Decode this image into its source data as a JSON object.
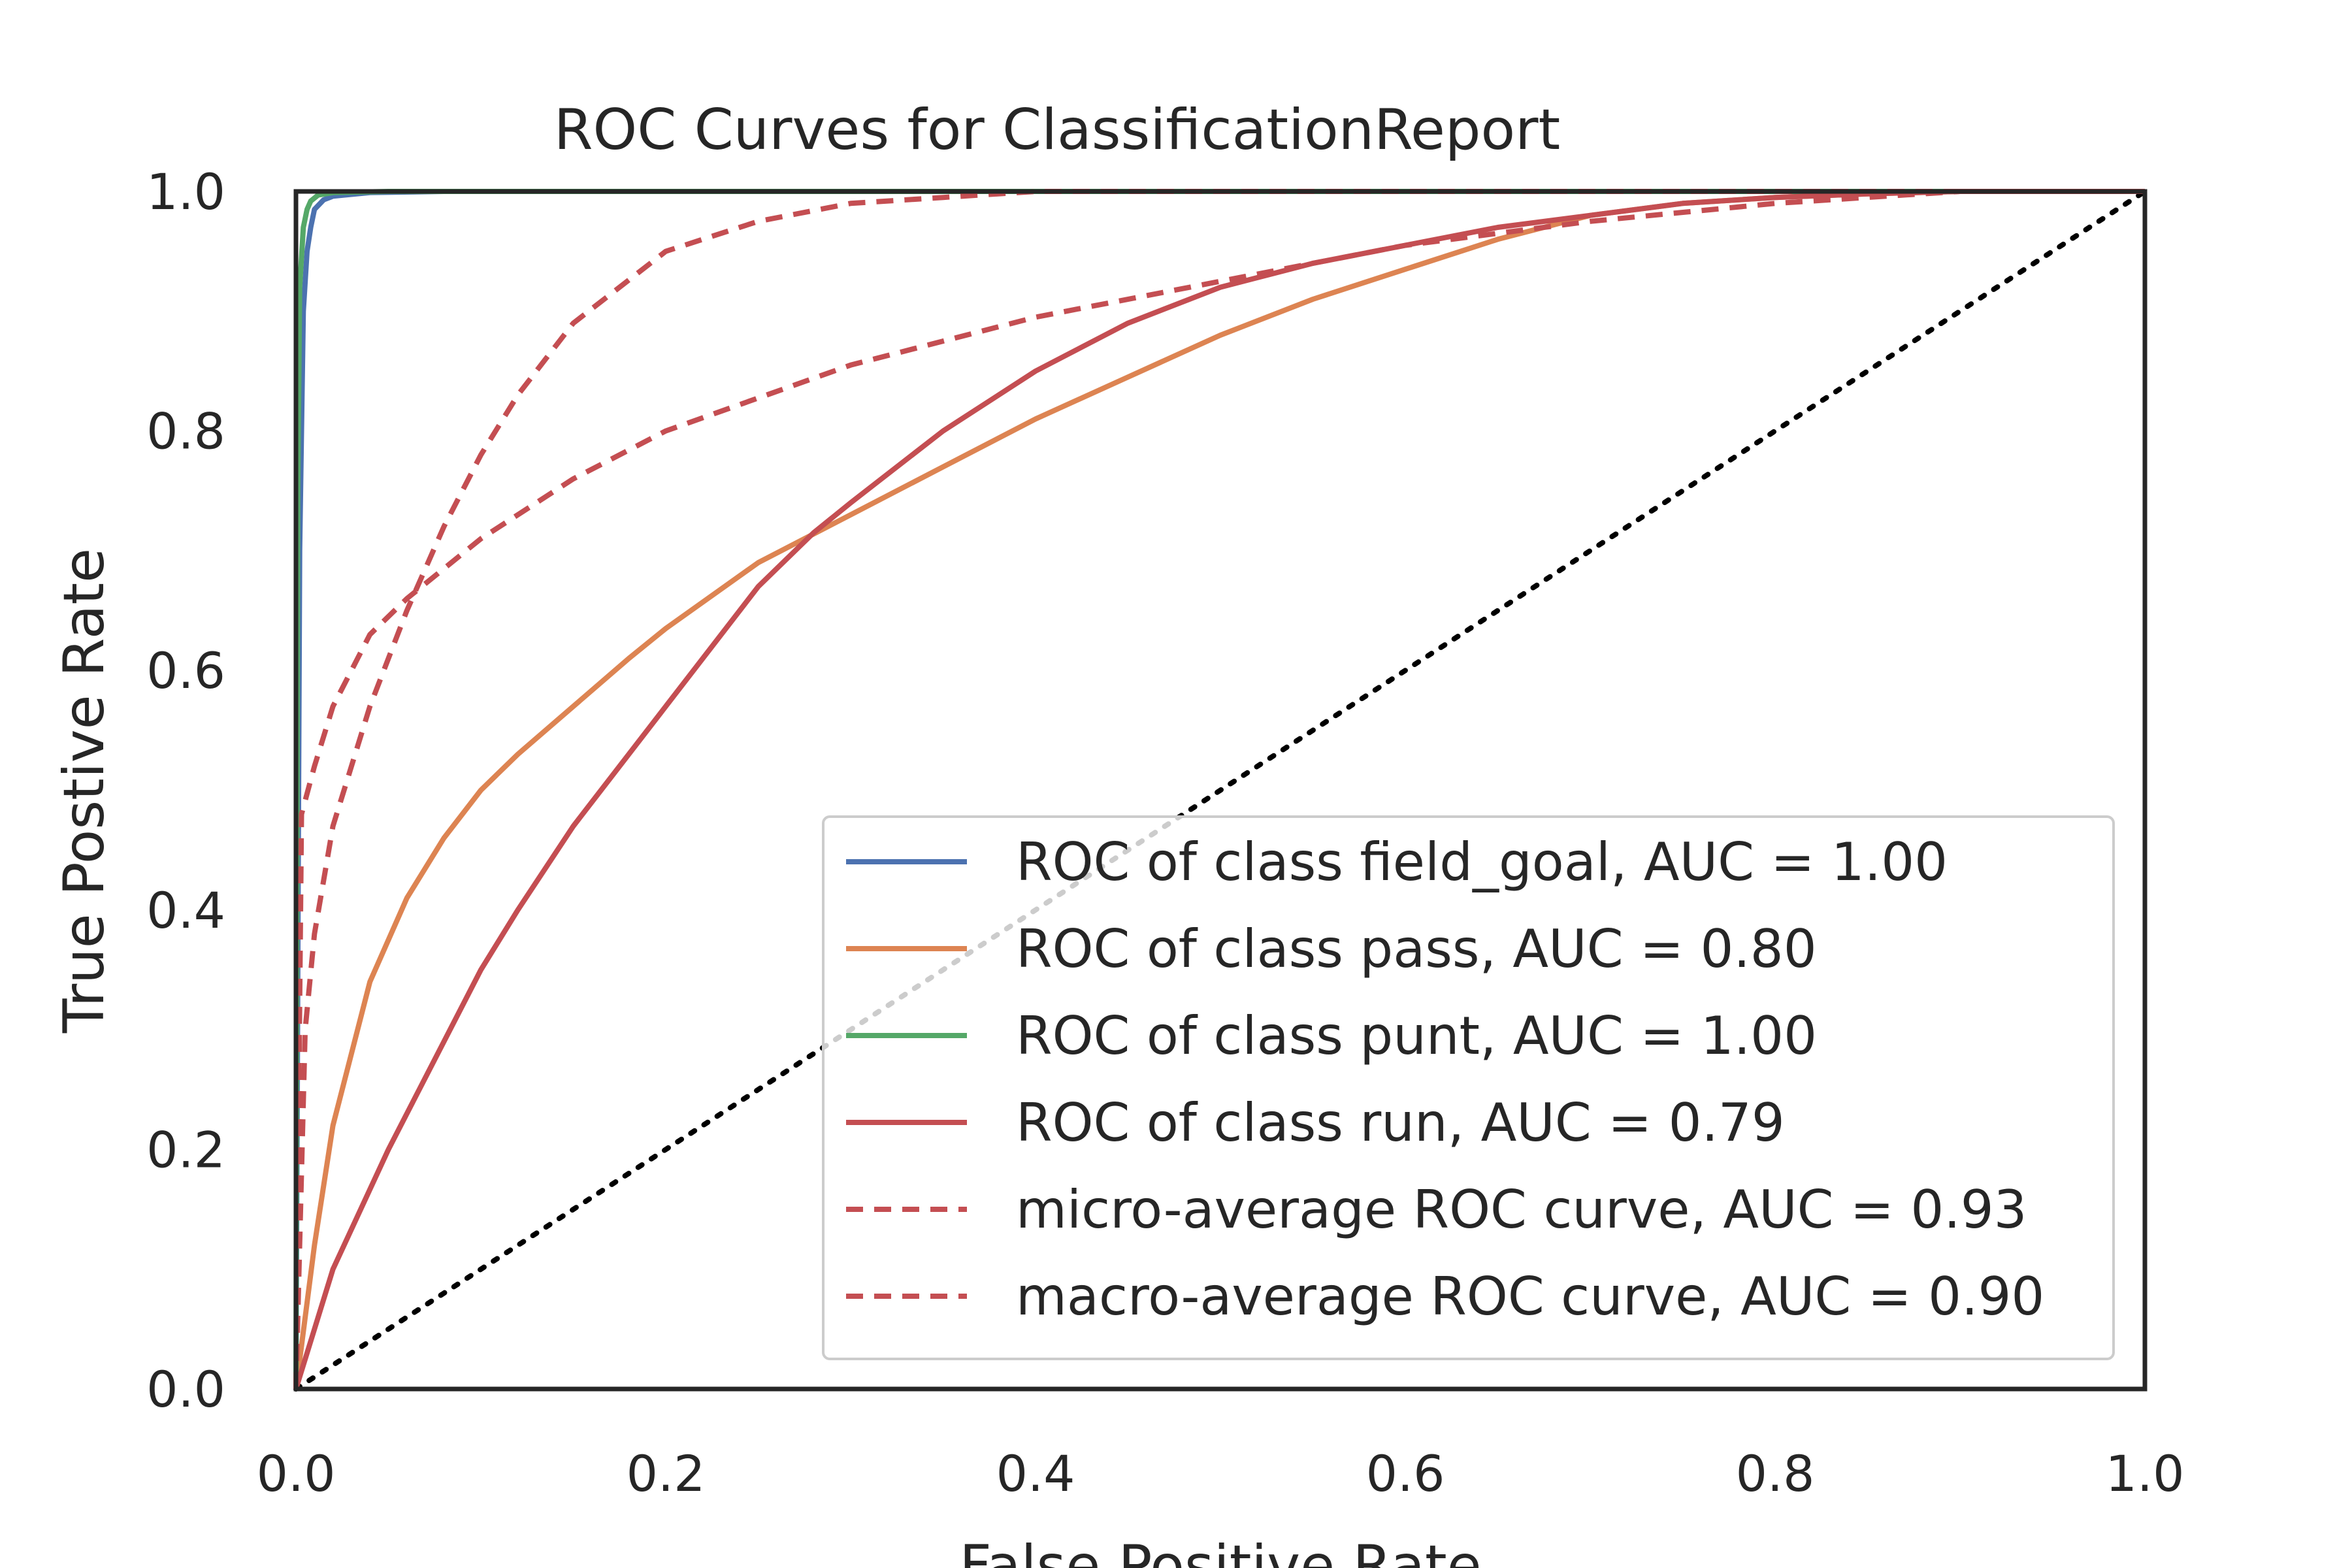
{
  "chart_data": {
    "type": "line",
    "title": "ROC Curves for ClassificationReport",
    "xlabel": "False Positive Rate",
    "ylabel": "True Postive Rate",
    "xlim": [
      0,
      1
    ],
    "ylim": [
      0,
      1
    ],
    "xticks": [
      "0.0",
      "0.2",
      "0.4",
      "0.6",
      "0.8",
      "1.0"
    ],
    "yticks": [
      "0.0",
      "0.2",
      "0.4",
      "0.6",
      "0.8",
      "1.0"
    ],
    "grid": false,
    "legend_position": "lower-right",
    "series": [
      {
        "name": "ROC of class field_goal, AUC = 1.00",
        "color": "#4c72b0",
        "dash": "solid",
        "x": [
          0,
          0.002,
          0.004,
          0.006,
          0.008,
          0.01,
          0.015,
          0.02,
          0.04,
          0.08,
          1.0
        ],
        "y": [
          0,
          0.7,
          0.9,
          0.95,
          0.97,
          0.985,
          0.993,
          0.996,
          0.999,
          1.0,
          1.0
        ]
      },
      {
        "name": "ROC of class pass, AUC = 0.80",
        "color": "#dd8452",
        "dash": "solid",
        "x": [
          0,
          0.01,
          0.02,
          0.04,
          0.06,
          0.08,
          0.1,
          0.12,
          0.15,
          0.18,
          0.2,
          0.25,
          0.3,
          0.35,
          0.4,
          0.45,
          0.5,
          0.55,
          0.6,
          0.65,
          0.7,
          0.75,
          0.8,
          0.85,
          0.9,
          0.95,
          1.0
        ],
        "y": [
          0,
          0.12,
          0.22,
          0.34,
          0.41,
          0.46,
          0.5,
          0.53,
          0.57,
          0.61,
          0.635,
          0.69,
          0.73,
          0.77,
          0.81,
          0.845,
          0.88,
          0.91,
          0.935,
          0.96,
          0.98,
          0.99,
          0.995,
          0.998,
          1.0,
          1.0,
          1.0
        ]
      },
      {
        "name": "ROC of class punt, AUC = 1.00",
        "color": "#55a868",
        "dash": "solid",
        "x": [
          0,
          0.001,
          0.002,
          0.004,
          0.006,
          0.008,
          0.012,
          0.02,
          0.05,
          1.0
        ],
        "y": [
          0,
          0.75,
          0.92,
          0.97,
          0.985,
          0.992,
          0.997,
          0.999,
          1.0,
          1.0
        ]
      },
      {
        "name": "ROC of class run, AUC = 0.79",
        "color": "#c44e52",
        "dash": "solid",
        "x": [
          0,
          0.02,
          0.05,
          0.08,
          0.1,
          0.12,
          0.15,
          0.2,
          0.25,
          0.28,
          0.3,
          0.35,
          0.4,
          0.45,
          0.5,
          0.55,
          0.6,
          0.65,
          0.7,
          0.75,
          0.8,
          0.85,
          0.9,
          0.95,
          1.0
        ],
        "y": [
          0,
          0.1,
          0.2,
          0.29,
          0.35,
          0.4,
          0.47,
          0.57,
          0.67,
          0.715,
          0.74,
          0.8,
          0.85,
          0.89,
          0.92,
          0.94,
          0.955,
          0.97,
          0.98,
          0.99,
          0.995,
          0.998,
          1.0,
          1.0,
          1.0
        ]
      },
      {
        "name": "micro-average ROC curve, AUC = 0.93",
        "color": "#c44e52",
        "dash": "dashed",
        "x": [
          0,
          0.005,
          0.01,
          0.02,
          0.04,
          0.06,
          0.08,
          0.1,
          0.12,
          0.15,
          0.2,
          0.25,
          0.3,
          0.35,
          0.4,
          0.5,
          0.6,
          0.7,
          0.8,
          0.9,
          1.0
        ],
        "y": [
          0,
          0.3,
          0.38,
          0.47,
          0.57,
          0.65,
          0.72,
          0.78,
          0.83,
          0.89,
          0.95,
          0.975,
          0.99,
          0.995,
          1.0,
          1.0,
          1.0,
          1.0,
          1.0,
          1.0,
          1.0
        ]
      },
      {
        "name": "macro-average ROC curve, AUC = 0.90",
        "color": "#c44e52",
        "dash": "dashed",
        "x": [
          0,
          0.003,
          0.01,
          0.02,
          0.04,
          0.06,
          0.08,
          0.1,
          0.15,
          0.2,
          0.3,
          0.4,
          0.5,
          0.6,
          0.7,
          0.8,
          0.9,
          1.0
        ],
        "y": [
          0,
          0.48,
          0.52,
          0.57,
          0.63,
          0.66,
          0.685,
          0.71,
          0.76,
          0.8,
          0.855,
          0.895,
          0.925,
          0.955,
          0.975,
          0.99,
          1.0,
          1.0
        ]
      },
      {
        "name": "",
        "color": "#000000",
        "dash": "dotted",
        "x": [
          0,
          1
        ],
        "y": [
          0,
          1
        ]
      }
    ]
  }
}
